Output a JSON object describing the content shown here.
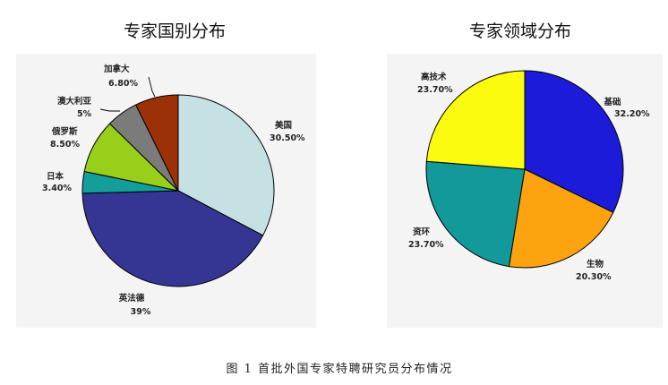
{
  "figure_caption": "图 1  首批外国专家特聘研究员分布情况",
  "chart_data": [
    {
      "type": "pie",
      "title": "专家国别分布",
      "slices": [
        {
          "label": "美国",
          "value_text": "30.50%",
          "value": 30.5,
          "color": "#c6e1e4"
        },
        {
          "label": "英法德",
          "value_text": "39%",
          "value": 39.0,
          "color": "#353594"
        },
        {
          "label": "日本",
          "value_text": "3.40%",
          "value": 3.4,
          "color": "#149e9a"
        },
        {
          "label": "俄罗斯",
          "value_text": "8.50%",
          "value": 8.5,
          "color": "#97cf1a"
        },
        {
          "label": "澳大利亚",
          "value_text": "5%",
          "value": 5.0,
          "color": "#7b7b7b"
        },
        {
          "label": "加拿大",
          "value_text": "6.80%",
          "value": 6.8,
          "color": "#9c3108"
        }
      ]
    },
    {
      "type": "pie",
      "title": "专家领域分布",
      "slices": [
        {
          "label": "基础",
          "value_text": "32.20%",
          "value": 32.2,
          "color": "#1b1bd9"
        },
        {
          "label": "生物",
          "value_text": "20.30%",
          "value": 20.3,
          "color": "#fca30f"
        },
        {
          "label": "资环",
          "value_text": "23.70%",
          "value": 23.7,
          "color": "#12999a"
        },
        {
          "label": "高技术",
          "value_text": "23.70%",
          "value": 23.7,
          "color": "#fbfb10"
        }
      ]
    }
  ]
}
